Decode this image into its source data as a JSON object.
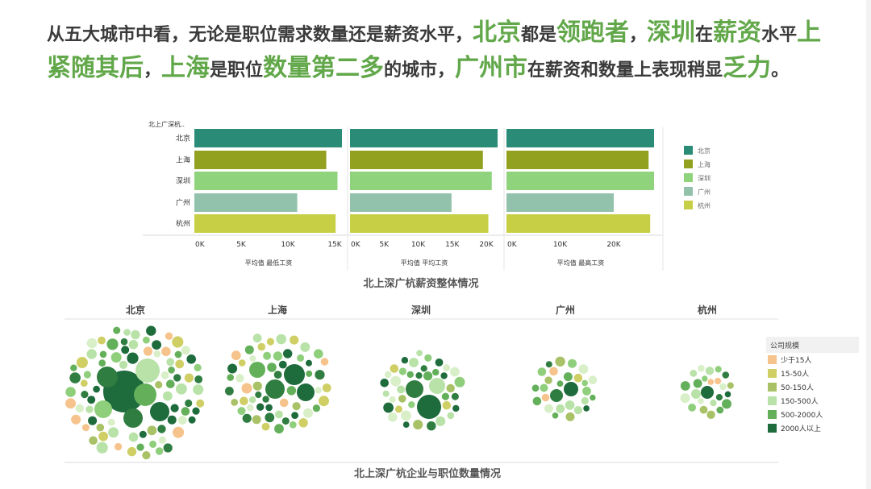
{
  "headline": {
    "segments": [
      {
        "text": "从五大城市中看，无论是职位需求数量还是薪资水平，",
        "em": false
      },
      {
        "text": "北京",
        "em": true
      },
      {
        "text": "都是",
        "em": false
      },
      {
        "text": "领跑者",
        "em": true
      },
      {
        "text": "，",
        "em": false
      },
      {
        "text": "深圳",
        "em": true
      },
      {
        "text": "在",
        "em": false
      },
      {
        "text": "薪资",
        "em": true
      },
      {
        "text": "水平",
        "em": false
      },
      {
        "text": "上紧随其后",
        "em": true
      },
      {
        "text": "，",
        "em": false
      },
      {
        "text": "上海",
        "em": true
      },
      {
        "text": "是职位",
        "em": false
      },
      {
        "text": "数量第二多",
        "em": true
      },
      {
        "text": "的城市，",
        "em": false
      },
      {
        "text": "广州市",
        "em": true
      },
      {
        "text": "在薪资和数量上表现稍显",
        "em": false
      },
      {
        "text": "乏力",
        "em": true
      },
      {
        "text": "。",
        "em": false
      }
    ]
  },
  "colors": {
    "北京": "#2a8c76",
    "上海": "#93a121",
    "深圳": "#8fd47c",
    "广州": "#92c2ab",
    "杭州": "#c7cf45"
  },
  "chart_data": [
    {
      "type": "bar",
      "orientation": "horizontal",
      "title": "北上深广杭薪资整体情况",
      "row_header": "北上广深杭..",
      "categories": [
        "北京",
        "上海",
        "深圳",
        "广州",
        "杭州"
      ],
      "panels": [
        {
          "xlabel": "平均值 最低工资",
          "ticks": [
            "0K",
            "5K",
            "10K",
            "15K"
          ],
          "xlim": [
            0,
            16000
          ],
          "values": [
            15800,
            14100,
            15300,
            11000,
            15100
          ]
        },
        {
          "xlabel": "平均值 平均工资",
          "ticks": [
            "0K",
            "5K",
            "10K",
            "15K",
            "20K"
          ],
          "xlim": [
            0,
            22000
          ],
          "values": [
            22000,
            19500,
            20800,
            14900,
            20300
          ]
        },
        {
          "xlabel": "平均值 最高工资",
          "ticks": [
            "0K",
            "10K",
            "20K"
          ],
          "xlim": [
            0,
            29000
          ],
          "values": [
            29000,
            26500,
            27800,
            20000,
            26800
          ]
        }
      ],
      "legend": {
        "placement": "right",
        "items": [
          "北京",
          "上海",
          "深圳",
          "广州",
          "杭州"
        ]
      },
      "grid": false
    },
    {
      "type": "packed-bubble",
      "title": "北上深广杭企业与职位数量情况",
      "cities": [
        "北京",
        "上海",
        "深圳",
        "广州",
        "杭州"
      ],
      "legend": {
        "title": "公司规模",
        "placement": "right",
        "items": [
          {
            "label": "少于15人",
            "color": "#f6c38c"
          },
          {
            "label": "15-50人",
            "color": "#cfcf66"
          },
          {
            "label": "50-150人",
            "color": "#a9c267"
          },
          {
            "label": "150-500人",
            "color": "#b8e2a8"
          },
          {
            "label": "500-2000人",
            "color": "#64b05a"
          },
          {
            "label": "2000人以上",
            "color": "#1e6b3c"
          }
        ]
      }
    }
  ]
}
